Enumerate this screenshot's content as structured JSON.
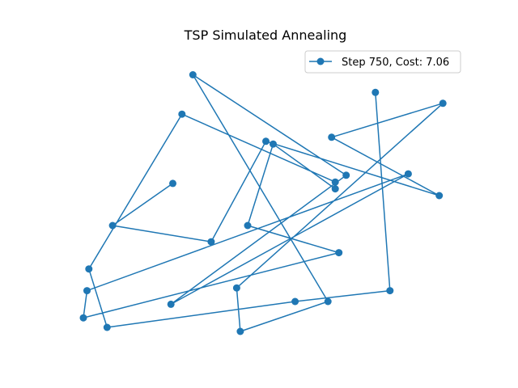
{
  "chart_data": {
    "type": "line",
    "title": "TSP Simulated Annealing",
    "xlabel": "",
    "ylabel": "",
    "axes_visible": false,
    "grid": false,
    "legend_position": "upper-right",
    "series": [
      {
        "name": "Step 750, Cost: 7.06",
        "color": "#1f77b4",
        "marker": "circle",
        "x": [
          0.245,
          0.08,
          0.35,
          0.5,
          0.975,
          0.68,
          0.985,
          0.42,
          0.43,
          0.67,
          0.3,
          0.72,
          0.24,
          0.89,
          0.01,
          0.0,
          0.7,
          0.45,
          0.52,
          0.69,
          0.69,
          0.27,
          0.015,
          0.065,
          0.58,
          0.84,
          0.8
        ],
        "y": [
          0.545,
          0.39,
          0.33,
          0.7,
          0.5,
          0.715,
          0.84,
          0.16,
          0.0,
          0.11,
          0.945,
          0.575,
          0.1,
          0.58,
          0.15,
          0.05,
          0.29,
          0.39,
          0.69,
          0.525,
          0.55,
          0.8,
          0.23,
          0.015,
          0.11,
          0.15,
          0.88
        ]
      }
    ]
  }
}
